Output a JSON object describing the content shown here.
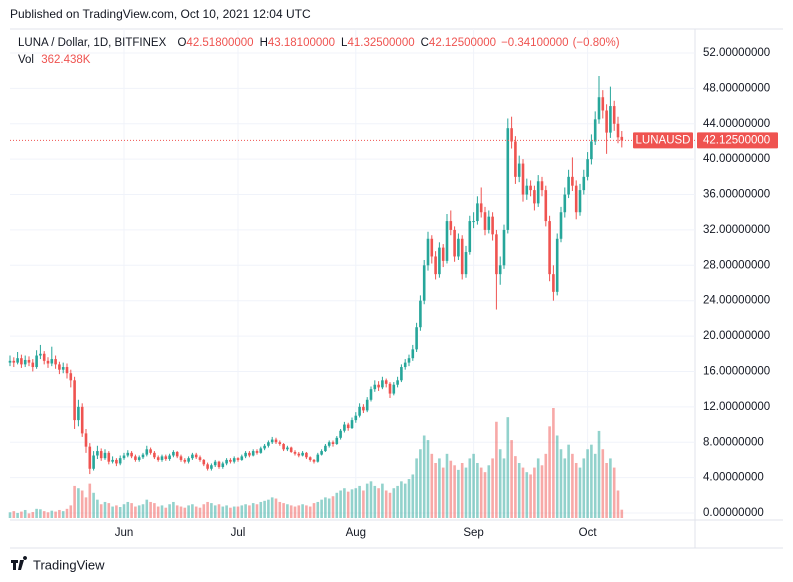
{
  "publish_note": "Published on TradingView.com, Oct 10, 2021 12:04 UTC",
  "footer": "TradingView",
  "chart_data": {
    "type": "candlestick",
    "title": "LUNA / Dollar, 1D, BITFINEX",
    "header_values": [
      {
        "key": "O",
        "value": 42.518,
        "label": "42.51800000"
      },
      {
        "key": "H",
        "value": 43.181,
        "label": "43.18100000"
      },
      {
        "key": "L",
        "value": 41.325,
        "label": "41.32500000"
      },
      {
        "key": "C",
        "value": 42.125,
        "label": "42.12500000"
      }
    ],
    "change": {
      "value": -0.341,
      "label": "−0.34100000"
    },
    "change_pct": {
      "value": -0.8,
      "label": "(−0.80%)"
    },
    "volume_title": "Vol",
    "volume_last": {
      "value": 362.438,
      "label": "362.438K"
    },
    "last_price": {
      "symbol": "LUNAUSD",
      "value": 42.125,
      "label": "42.12500000"
    },
    "up_color": "#26a69a",
    "down_color": "#ef5350",
    "grid": true,
    "ylim": [
      0,
      52
    ],
    "yticks": [
      {
        "value": 0,
        "label": "0.00000000"
      },
      {
        "value": 4,
        "label": "4.00000000"
      },
      {
        "value": 8,
        "label": "8.00000000"
      },
      {
        "value": 12,
        "label": "12.00000000"
      },
      {
        "value": 16,
        "label": "16.00000000"
      },
      {
        "value": 20,
        "label": "20.00000000"
      },
      {
        "value": 24,
        "label": "24.00000000"
      },
      {
        "value": 28,
        "label": "28.00000000"
      },
      {
        "value": 32,
        "label": "32.00000000"
      },
      {
        "value": 36,
        "label": "36.00000000"
      },
      {
        "value": 40,
        "label": "40.00000000"
      },
      {
        "value": 44,
        "label": "44.00000000"
      },
      {
        "value": 48,
        "label": "48.00000000"
      },
      {
        "value": 52,
        "label": "52.00000000"
      }
    ],
    "xticks": [
      {
        "value": 30,
        "label": "Jun"
      },
      {
        "value": 60,
        "label": "Jul"
      },
      {
        "value": 91,
        "label": "Aug"
      },
      {
        "value": 122,
        "label": "Sep"
      },
      {
        "value": 152,
        "label": "Oct"
      }
    ],
    "ohlc": [
      [
        17.0,
        17.8,
        16.6,
        17.2
      ],
      [
        17.2,
        17.6,
        16.5,
        17.0
      ],
      [
        17.0,
        18.2,
        16.8,
        17.5
      ],
      [
        17.5,
        17.9,
        16.4,
        16.8
      ],
      [
        16.8,
        17.8,
        16.5,
        17.3
      ],
      [
        17.3,
        17.7,
        16.6,
        17.0
      ],
      [
        17.0,
        17.4,
        16.0,
        16.5
      ],
      [
        16.5,
        18.4,
        16.3,
        17.8
      ],
      [
        17.8,
        19.0,
        17.4,
        18.0
      ],
      [
        18.0,
        18.3,
        16.8,
        17.2
      ],
      [
        17.2,
        17.6,
        16.4,
        16.9
      ],
      [
        16.9,
        18.8,
        16.6,
        17.4
      ],
      [
        17.4,
        17.8,
        16.3,
        16.8
      ],
      [
        16.8,
        17.1,
        15.7,
        16.2
      ],
      [
        16.2,
        17.0,
        15.8,
        16.5
      ],
      [
        16.5,
        16.9,
        15.2,
        15.8
      ],
      [
        15.8,
        16.2,
        14.2,
        15.0
      ],
      [
        15.0,
        15.4,
        9.5,
        10.5
      ],
      [
        10.5,
        12.8,
        9.8,
        12.0
      ],
      [
        12.0,
        12.4,
        8.6,
        9.0
      ],
      [
        9.0,
        9.5,
        6.8,
        7.5
      ],
      [
        7.5,
        7.9,
        4.4,
        5.0
      ],
      [
        5.0,
        7.0,
        4.8,
        6.5
      ],
      [
        6.5,
        7.6,
        6.1,
        7.0
      ],
      [
        7.0,
        7.3,
        5.9,
        6.2
      ],
      [
        6.2,
        7.2,
        6.0,
        6.8
      ],
      [
        6.8,
        7.0,
        5.5,
        5.8
      ],
      [
        5.8,
        6.4,
        5.6,
        6.0
      ],
      [
        6.0,
        6.2,
        5.3,
        5.6
      ],
      [
        5.6,
        6.5,
        5.4,
        6.2
      ],
      [
        6.2,
        6.8,
        6.0,
        6.5
      ],
      [
        6.5,
        7.1,
        6.3,
        6.8
      ],
      [
        6.8,
        7.0,
        6.2,
        6.4
      ],
      [
        6.4,
        6.6,
        5.8,
        6.0
      ],
      [
        6.0,
        6.5,
        5.8,
        6.3
      ],
      [
        6.3,
        6.8,
        6.1,
        6.6
      ],
      [
        6.6,
        7.6,
        6.4,
        7.2
      ],
      [
        7.2,
        7.4,
        6.6,
        6.8
      ],
      [
        6.8,
        7.0,
        6.1,
        6.3
      ],
      [
        6.3,
        6.5,
        5.8,
        6.0
      ],
      [
        6.0,
        6.6,
        5.8,
        6.4
      ],
      [
        6.4,
        6.6,
        5.9,
        6.1
      ],
      [
        6.1,
        6.7,
        5.9,
        6.5
      ],
      [
        6.5,
        7.1,
        6.3,
        6.9
      ],
      [
        6.9,
        7.0,
        6.2,
        6.4
      ],
      [
        6.4,
        6.6,
        5.8,
        6.0
      ],
      [
        6.0,
        6.2,
        5.6,
        5.8
      ],
      [
        5.8,
        6.4,
        5.6,
        6.2
      ],
      [
        6.2,
        6.8,
        6.0,
        6.6
      ],
      [
        6.6,
        6.8,
        6.1,
        6.3
      ],
      [
        6.3,
        6.5,
        5.8,
        6.0
      ],
      [
        6.0,
        6.1,
        5.3,
        5.5
      ],
      [
        5.5,
        5.7,
        4.8,
        5.0
      ],
      [
        5.0,
        5.6,
        4.8,
        5.4
      ],
      [
        5.4,
        6.0,
        5.2,
        5.8
      ],
      [
        5.8,
        5.9,
        5.0,
        5.2
      ],
      [
        5.2,
        5.8,
        5.0,
        5.6
      ],
      [
        5.6,
        6.2,
        5.4,
        6.0
      ],
      [
        6.0,
        6.2,
        5.6,
        5.8
      ],
      [
        5.8,
        6.4,
        5.6,
        6.2
      ],
      [
        6.2,
        6.3,
        5.8,
        6.0
      ],
      [
        6.0,
        6.6,
        5.9,
        6.4
      ],
      [
        6.4,
        7.0,
        6.2,
        6.8
      ],
      [
        6.8,
        7.0,
        6.3,
        6.5
      ],
      [
        6.5,
        7.2,
        6.4,
        7.0
      ],
      [
        7.0,
        7.2,
        6.6,
        6.8
      ],
      [
        6.8,
        7.5,
        6.7,
        7.3
      ],
      [
        7.3,
        7.8,
        7.1,
        7.6
      ],
      [
        7.6,
        8.2,
        7.4,
        8.0
      ],
      [
        8.0,
        8.6,
        7.8,
        8.3
      ],
      [
        8.3,
        8.5,
        7.8,
        8.0
      ],
      [
        8.0,
        8.2,
        7.6,
        7.8
      ],
      [
        7.8,
        7.9,
        7.0,
        7.2
      ],
      [
        7.2,
        7.6,
        7.0,
        7.4
      ],
      [
        7.4,
        7.5,
        6.8,
        6.9
      ],
      [
        6.9,
        7.1,
        6.5,
        6.7
      ],
      [
        6.7,
        6.9,
        6.3,
        6.5
      ],
      [
        6.5,
        7.0,
        6.4,
        6.8
      ],
      [
        6.8,
        6.9,
        6.1,
        6.3
      ],
      [
        6.3,
        6.4,
        5.8,
        6.0
      ],
      [
        6.0,
        6.1,
        5.6,
        5.8
      ],
      [
        5.8,
        6.8,
        5.7,
        6.6
      ],
      [
        6.6,
        7.2,
        6.5,
        7.0
      ],
      [
        7.0,
        7.8,
        6.9,
        7.6
      ],
      [
        7.6,
        8.2,
        7.4,
        8.0
      ],
      [
        8.0,
        8.2,
        7.5,
        7.8
      ],
      [
        7.8,
        8.7,
        7.7,
        8.5
      ],
      [
        8.5,
        9.5,
        8.3,
        9.3
      ],
      [
        9.3,
        10.3,
        9.1,
        10.0
      ],
      [
        10.0,
        10.2,
        9.3,
        9.6
      ],
      [
        9.6,
        10.8,
        9.5,
        10.5
      ],
      [
        10.5,
        11.4,
        10.2,
        11.0
      ],
      [
        11.0,
        12.4,
        10.8,
        12.0
      ],
      [
        12.0,
        12.3,
        11.3,
        11.6
      ],
      [
        11.6,
        13.1,
        11.4,
        12.8
      ],
      [
        12.8,
        14.3,
        12.6,
        14.0
      ],
      [
        14.0,
        15.0,
        13.7,
        14.5
      ],
      [
        14.5,
        14.9,
        13.8,
        14.2
      ],
      [
        14.2,
        15.4,
        14.0,
        15.0
      ],
      [
        15.0,
        15.2,
        14.2,
        14.6
      ],
      [
        14.6,
        14.8,
        13.0,
        13.5
      ],
      [
        13.5,
        14.8,
        13.3,
        14.5
      ],
      [
        14.5,
        15.4,
        14.2,
        15.0
      ],
      [
        15.0,
        16.8,
        14.8,
        16.5
      ],
      [
        16.5,
        17.4,
        16.2,
        17.0
      ],
      [
        17.0,
        17.9,
        16.6,
        17.5
      ],
      [
        17.5,
        19.0,
        17.2,
        18.5
      ],
      [
        18.5,
        21.5,
        18.2,
        21.0
      ],
      [
        21.0,
        24.6,
        20.6,
        24.0
      ],
      [
        24.0,
        28.6,
        23.6,
        28.0
      ],
      [
        28.0,
        31.8,
        27.4,
        31.0
      ],
      [
        31.0,
        31.4,
        28.2,
        29.0
      ],
      [
        29.0,
        29.6,
        26.4,
        27.0
      ],
      [
        27.0,
        30.6,
        26.6,
        30.0
      ],
      [
        30.0,
        30.4,
        27.8,
        28.5
      ],
      [
        28.5,
        33.8,
        28.2,
        33.0
      ],
      [
        33.0,
        34.2,
        31.4,
        32.0
      ],
      [
        32.0,
        32.4,
        28.4,
        29.0
      ],
      [
        29.0,
        31.6,
        28.6,
        31.0
      ],
      [
        31.0,
        31.4,
        26.4,
        27.0
      ],
      [
        27.0,
        30.2,
        26.6,
        29.5
      ],
      [
        29.5,
        33.6,
        29.2,
        33.0
      ],
      [
        33.0,
        34.0,
        32.2,
        33.0
      ],
      [
        33.0,
        35.8,
        32.6,
        35.0
      ],
      [
        35.0,
        36.8,
        33.4,
        34.0
      ],
      [
        34.0,
        34.6,
        31.4,
        32.0
      ],
      [
        32.0,
        34.2,
        31.6,
        33.5
      ],
      [
        33.5,
        34.0,
        30.8,
        31.5
      ],
      [
        31.5,
        32.0,
        23.0,
        27.0
      ],
      [
        27.0,
        29.0,
        25.8,
        28.0
      ],
      [
        28.0,
        32.6,
        27.6,
        32.0
      ],
      [
        32.0,
        44.6,
        31.6,
        43.5
      ],
      [
        43.5,
        44.8,
        41.2,
        42.0
      ],
      [
        42.0,
        42.6,
        37.2,
        38.0
      ],
      [
        38.0,
        40.4,
        37.4,
        39.5
      ],
      [
        39.5,
        40.0,
        35.2,
        36.0
      ],
      [
        36.0,
        37.8,
        35.4,
        37.0
      ],
      [
        37.0,
        37.6,
        35.8,
        36.5
      ],
      [
        36.5,
        37.0,
        34.2,
        35.0
      ],
      [
        35.0,
        38.2,
        34.6,
        37.5
      ],
      [
        37.5,
        38.0,
        35.8,
        36.5
      ],
      [
        36.5,
        37.0,
        32.4,
        33.0
      ],
      [
        33.0,
        33.6,
        26.2,
        27.0
      ],
      [
        27.0,
        28.0,
        24.0,
        25.0
      ],
      [
        25.0,
        31.6,
        24.6,
        31.0
      ],
      [
        31.0,
        34.6,
        30.6,
        34.0
      ],
      [
        34.0,
        36.8,
        33.4,
        36.0
      ],
      [
        36.0,
        38.8,
        35.6,
        38.0
      ],
      [
        38.0,
        40.2,
        36.4,
        37.0
      ],
      [
        37.0,
        37.6,
        33.2,
        34.0
      ],
      [
        34.0,
        37.2,
        33.6,
        36.5
      ],
      [
        36.5,
        38.8,
        36.0,
        38.0
      ],
      [
        38.0,
        40.8,
        37.6,
        40.0
      ],
      [
        40.0,
        42.8,
        39.4,
        42.0
      ],
      [
        42.0,
        45.4,
        41.6,
        44.5
      ],
      [
        44.5,
        49.4,
        44.0,
        47.0
      ],
      [
        47.0,
        47.8,
        44.6,
        45.5
      ],
      [
        45.5,
        46.2,
        40.6,
        43.0
      ],
      [
        43.0,
        48.2,
        42.4,
        46.0
      ],
      [
        46.0,
        46.6,
        43.2,
        44.0
      ],
      [
        44.0,
        44.8,
        41.8,
        42.466
      ],
      [
        42.518,
        43.181,
        41.325,
        42.125
      ]
    ],
    "volume": [
      250,
      300,
      220,
      280,
      350,
      200,
      260,
      400,
      380,
      300,
      250,
      320,
      280,
      350,
      300,
      400,
      550,
      1400,
      1300,
      1200,
      900,
      1500,
      1100,
      800,
      600,
      700,
      650,
      500,
      550,
      480,
      600,
      700,
      650,
      500,
      550,
      600,
      800,
      700,
      650,
      500,
      550,
      450,
      600,
      700,
      550,
      500,
      450,
      550,
      600,
      500,
      450,
      600,
      700,
      650,
      550,
      600,
      500,
      550,
      450,
      500,
      500,
      550,
      600,
      550,
      650,
      600,
      700,
      750,
      800,
      900,
      850,
      700,
      650,
      600,
      550,
      500,
      550,
      600,
      550,
      500,
      650,
      700,
      800,
      900,
      850,
      950,
      1100,
      1200,
      1300,
      1150,
      1250,
      1300,
      1400,
      1200,
      1500,
      1600,
      1400,
      1300,
      1500,
      1200,
      1100,
      1300,
      1400,
      1600,
      1500,
      1700,
      1900,
      2600,
      3000,
      3600,
      3400,
      2800,
      2400,
      2600,
      2200,
      2800,
      2500,
      2300,
      2100,
      2400,
      2200,
      2600,
      2800,
      2400,
      2200,
      2000,
      2300,
      2600,
      4200,
      3000,
      2600,
      4400,
      3400,
      2700,
      2400,
      2200,
      2000,
      1900,
      2200,
      2600,
      2300,
      2800,
      4000,
      4800,
      3600,
      3000,
      2600,
      3200,
      2800,
      2400,
      2200,
      2600,
      3000,
      3200,
      2800,
      3800,
      3000,
      2400,
      2600,
      2200,
      1200,
      362.438
    ]
  }
}
